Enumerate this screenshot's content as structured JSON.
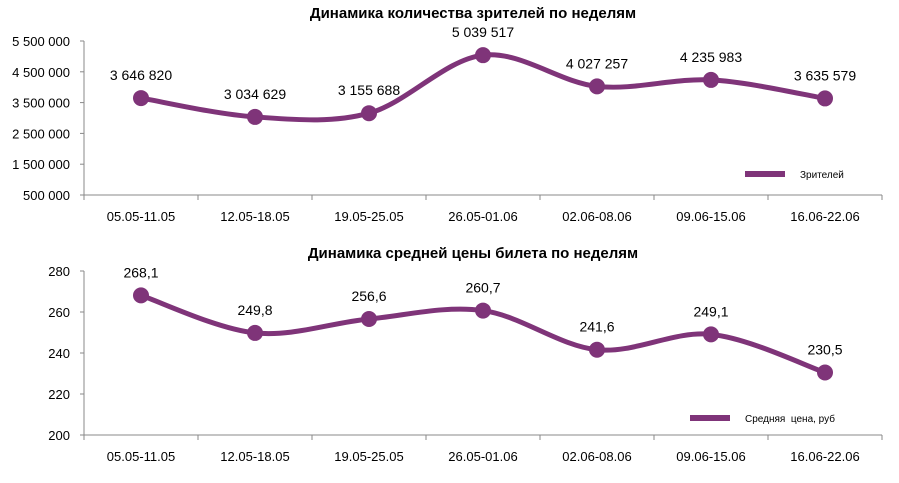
{
  "accent_color": "#7f3479",
  "chart_data": [
    {
      "type": "line",
      "title": "Динамика количества зрителей по неделям",
      "categories": [
        "05.05-11.05",
        "12.05-18.05",
        "19.05-25.05",
        "26.05-01.06",
        "02.06-08.06",
        "09.06-15.06",
        "16.06-22.06"
      ],
      "series": [
        {
          "name": "Зрителей",
          "values": [
            3646820,
            3034629,
            3155688,
            5039517,
            4027257,
            4235983,
            3635579
          ]
        }
      ],
      "data_labels": [
        "3 646 820",
        "3 034 629",
        "3 155 688",
        "5 039 517",
        "4 027 257",
        "4 235 983",
        "3 635 579"
      ],
      "yticks": [
        500000,
        1500000,
        2500000,
        3500000,
        4500000,
        5500000
      ],
      "ytick_labels": [
        "500 000",
        "1 500 000",
        "2 500 000",
        "3 500 000",
        "4 500 000",
        "5 500 000"
      ],
      "ylim": [
        500000,
        5500000
      ],
      "smooth": true,
      "grid": false,
      "legend": "bottom-right"
    },
    {
      "type": "line",
      "title": "Динамика средней цены билета по неделям",
      "categories": [
        "05.05-11.05",
        "12.05-18.05",
        "19.05-25.05",
        "26.05-01.06",
        "02.06-08.06",
        "09.06-15.06",
        "16.06-22.06"
      ],
      "series": [
        {
          "name": "Средняя  цена, руб",
          "values": [
            268.1,
            249.8,
            256.6,
            260.7,
            241.6,
            249.1,
            230.5
          ]
        }
      ],
      "data_labels": [
        "268,1",
        "249,8",
        "256,6",
        "260,7",
        "241,6",
        "249,1",
        "230,5"
      ],
      "yticks": [
        200,
        220,
        240,
        260,
        280
      ],
      "ytick_labels": [
        "200",
        "220",
        "240",
        "260",
        "280"
      ],
      "ylim": [
        200,
        280
      ],
      "smooth": true,
      "grid": false,
      "legend": "bottom-right"
    }
  ]
}
